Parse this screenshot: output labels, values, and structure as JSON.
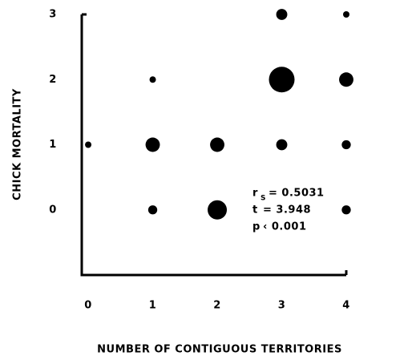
{
  "chart_data": {
    "type": "scatter",
    "x_label": "NUMBER OF CONTIGUOUS TERRITORIES",
    "y_label": "CHICK MORTALITY",
    "x": [
      0,
      1,
      1,
      1,
      2,
      2,
      3,
      3,
      3,
      4,
      4,
      4,
      4
    ],
    "values": [
      1,
      0,
      1,
      2,
      0,
      1,
      1,
      2,
      3,
      0,
      1,
      2,
      3
    ],
    "sizes": [
      1,
      2,
      5,
      1,
      9,
      5,
      3,
      16,
      3,
      2,
      2,
      5,
      1
    ],
    "color": "#000000",
    "xlim": [
      -0.1,
      4
    ],
    "ylim": [
      -1,
      3
    ],
    "xticks": [
      0,
      1,
      2,
      3,
      4
    ],
    "yticks": [
      0,
      1,
      2,
      3
    ],
    "annotations": [
      {
        "symbol": "r",
        "subscript": "S",
        "text": "= 0.5031"
      },
      {
        "symbol": "t",
        "text": "= 3.948"
      },
      {
        "symbol": "p",
        "text": "‹ 0.001"
      }
    ]
  }
}
